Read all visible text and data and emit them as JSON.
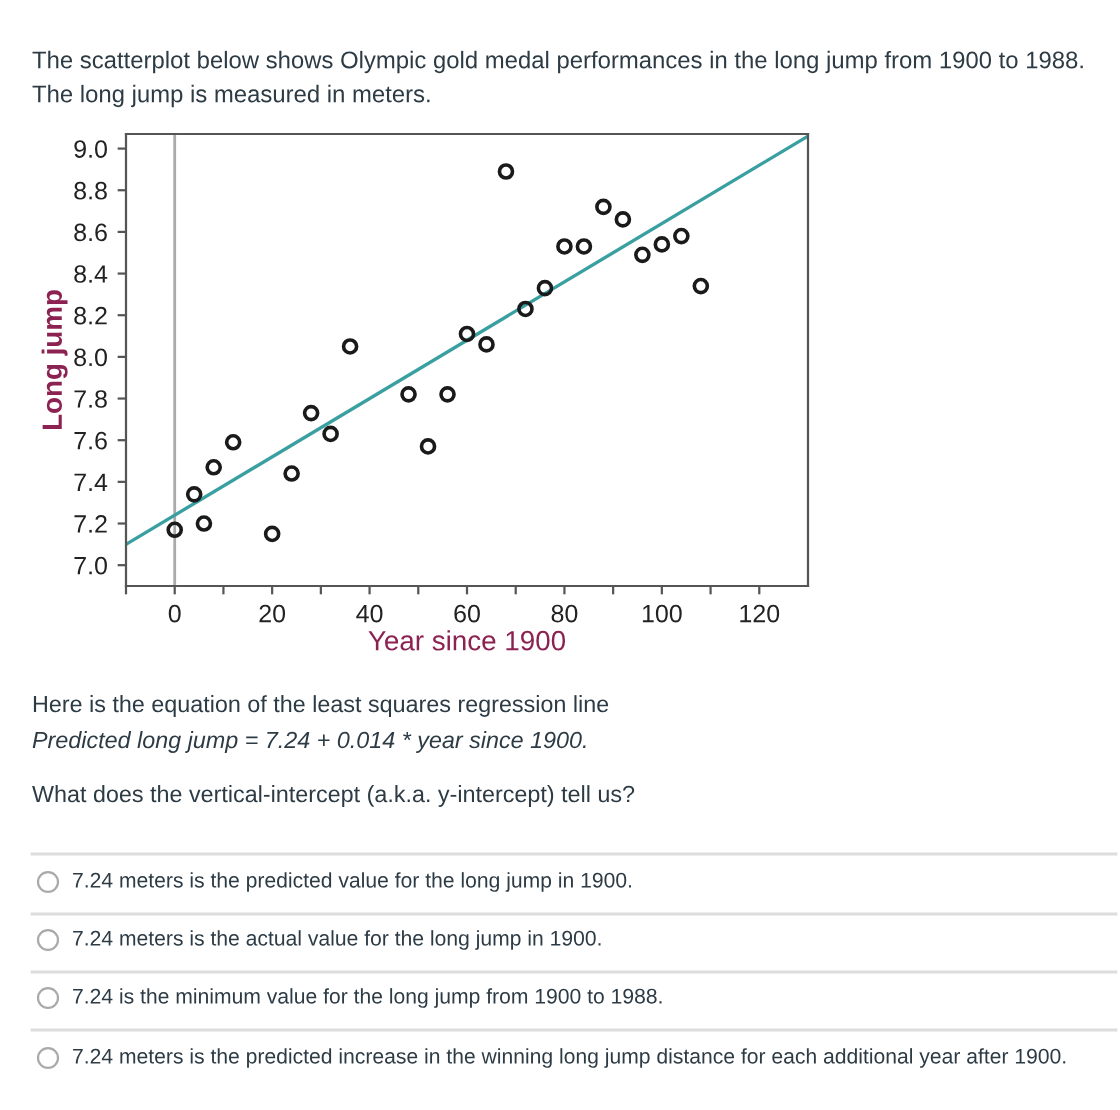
{
  "chart_data": {
    "type": "scatter",
    "title": "The scatterplot below shows Olympic gold medal performances in the long jump from 1900 to 1988.",
    "subtitle": "The long jump is measured in meters.",
    "xlabel": "Year since 1900",
    "ylabel": "Long jump",
    "series": [
      {
        "color": "#1a1a1a",
        "marker": "circle",
        "x": [
          0,
          4,
          6,
          8,
          12,
          20,
          24,
          28,
          32,
          36,
          48,
          52,
          56,
          60,
          64,
          68,
          72,
          76,
          80,
          84,
          88,
          92,
          96,
          100,
          104,
          108
        ],
        "values": [
          7.17,
          7.34,
          7.2,
          7.47,
          7.59,
          7.15,
          7.44,
          7.73,
          7.63,
          8.05,
          7.82,
          7.57,
          7.82,
          8.11,
          8.06,
          8.89,
          8.23,
          8.33,
          8.53,
          8.53,
          8.72,
          8.66,
          8.49,
          8.54,
          8.58,
          8.34
        ]
      },
      {
        "type": "line",
        "color": "#3a9fa0",
        "marker": "none",
        "line_style": "solid",
        "x": [
          -10,
          130
        ],
        "values": [
          7.1,
          9.06
        ]
      }
    ],
    "xlim": [
      -10,
      130
    ],
    "ylim": [
      6.9,
      9.07
    ],
    "xticks": [
      {
        "value": -10,
        "label": null
      },
      0,
      {
        "value": 10,
        "label": null
      },
      20,
      {
        "value": 30,
        "label": null
      },
      40,
      {
        "value": 50,
        "label": null
      },
      60,
      {
        "value": 70,
        "label": null
      },
      80,
      {
        "value": 90,
        "label": null
      },
      100,
      {
        "value": 110,
        "label": null
      },
      120
    ],
    "yticks": [
      {
        "value": 7,
        "label": "7.0"
      },
      7.2,
      7.4,
      7.6,
      7.8,
      {
        "value": 8,
        "label": "8.0"
      },
      8.2,
      8.4,
      8.6,
      8.8,
      {
        "value": 9,
        "label": "9.0"
      }
    ],
    "ref_lines": [
      {
        "axis": "x",
        "value": 0,
        "color": "#aaaaaa"
      }
    ],
    "grid": false,
    "legend": false,
    "annotations": [
      "Here is the equation of the least squares regression line",
      "Predicted long jump = 7.24 + 0.014 * year since 1900.",
      "What does the vertical-intercept (a.k.a. y-intercept) tell us?",
      "7.24 meters is the predicted value for the long jump in 1900.",
      "7.24 meters is the actual value for the long jump in 1900.",
      "7.24 is the minimum value for the long jump from 1900 to 1988.",
      "7.24 meters is the predicted increase in the winning long jump distance for each additional year after 1900."
    ]
  }
}
